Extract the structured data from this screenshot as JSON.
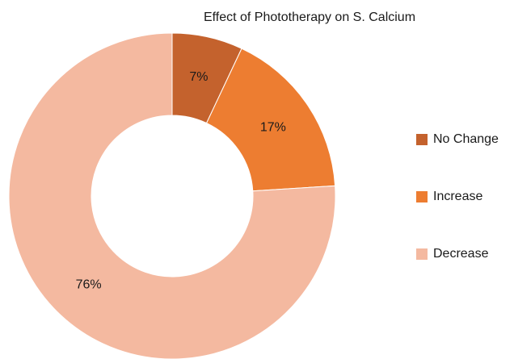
{
  "chart_data": {
    "type": "donut",
    "title": "Effect of Phototherapy on S. Calcium",
    "categories": [
      "No Change",
      "Increase",
      "Decrease"
    ],
    "values": [
      7,
      17,
      76
    ],
    "value_labels": [
      "7%",
      "17%",
      "76%"
    ],
    "colors": [
      "#c4622d",
      "#ed7d31",
      "#f4b9a0"
    ],
    "legend": "right"
  }
}
